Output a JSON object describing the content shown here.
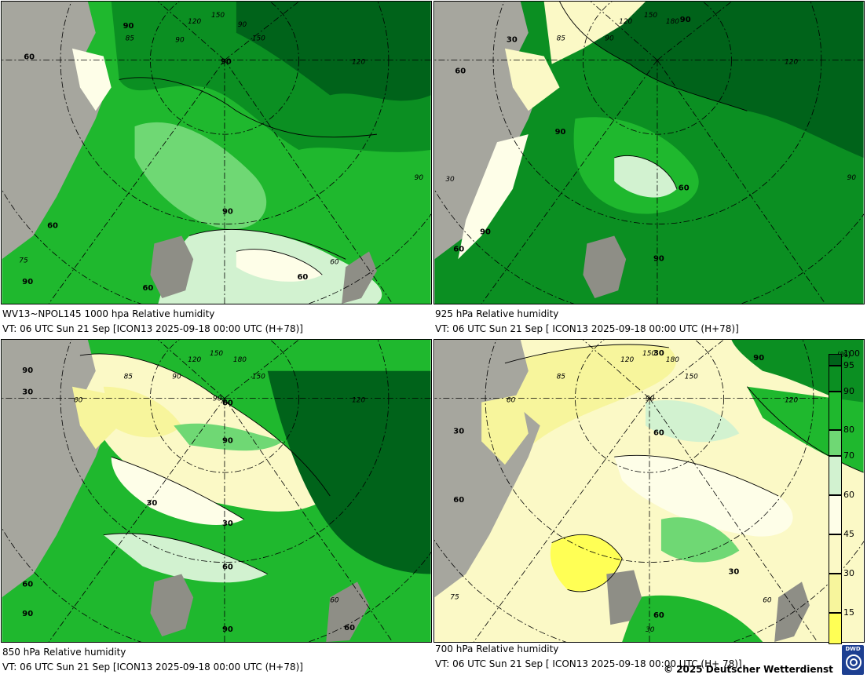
{
  "colors": {
    "land": "#a6a69e",
    "land_dark": "#8e8e86",
    "legend_scale": [
      {
        "min": 0,
        "max": 15,
        "color": "#ffff55"
      },
      {
        "min": 15,
        "max": 30,
        "color": "#f7f59c"
      },
      {
        "min": 30,
        "max": 45,
        "color": "#fbf9c6"
      },
      {
        "min": 45,
        "max": 60,
        "color": "#fefee8"
      },
      {
        "min": 60,
        "max": 70,
        "color": "#d2f2d0"
      },
      {
        "min": 70,
        "max": 80,
        "color": "#6fd874"
      },
      {
        "min": 80,
        "max": 90,
        "color": "#1fb82e"
      },
      {
        "min": 90,
        "max": 95,
        "color": "#0b8f22"
      },
      {
        "min": 95,
        "max": 100,
        "color": "#00631a"
      }
    ]
  },
  "legend": {
    "unit": "(%)",
    "ticks": [
      "100",
      "95",
      "90",
      "80",
      "70",
      "60",
      "45",
      "30",
      "15"
    ]
  },
  "panels": [
    {
      "id": "p1",
      "caption_line1": "WV13~NPOL145 1000 hpa Relative humidity",
      "caption_line2": "VT: 06 UTC Sun  21 Sep [ICON13 2025-09-18 00:00 UTC  (H+78)]",
      "base_color": "#1fb82e",
      "contour_labels": [
        "90",
        "60",
        "60",
        "90",
        "90",
        "60",
        "90",
        "60"
      ],
      "grid_labels": [
        "90",
        "120",
        "150",
        "150",
        "90",
        "85",
        "120",
        "90",
        "75",
        "60"
      ]
    },
    {
      "id": "p2",
      "caption_line1": "925 hPa Relative humidity",
      "caption_line2": "VT: 06 UTC Sun  21 Sep [ ICON13 2025-09-18 00:00 UTC  (H+78)]",
      "base_color": "#0b8f22",
      "contour_labels": [
        "30",
        "90",
        "60",
        "90",
        "60",
        "90",
        "60",
        "90"
      ],
      "grid_labels": [
        "150",
        "120",
        "180",
        "90",
        "85",
        "120",
        "90",
        "30"
      ]
    },
    {
      "id": "p3",
      "caption_line1": "850 hPa  Relative humidity",
      "caption_line2": "VT: 06 UTC Sun  21 Sep [ICON13 2025-09-18 00:00 UTC  (H+78)]",
      "base_color": "#1fb82e",
      "contour_labels": [
        "90",
        "30",
        "60",
        "90",
        "30",
        "30",
        "60",
        "60",
        "90",
        "90",
        "60"
      ],
      "grid_labels": [
        "120",
        "150",
        "180",
        "150",
        "85",
        "90",
        "60",
        "90",
        "120",
        "60"
      ]
    },
    {
      "id": "p4",
      "caption_line1": "700 hPa Relative humidity",
      "caption_line2": "VT: 06 UTC Sun  21 Sep [ ICON13 2025-09-18 00:00 UTC  (H+ 78)]",
      "base_color": "#fbf9c6",
      "contour_labels": [
        "30",
        "90",
        "30",
        "60",
        "60",
        "30",
        "60"
      ],
      "grid_labels": [
        "150",
        "120",
        "180",
        "85",
        "90",
        "150",
        "60",
        "120",
        "75",
        "30",
        "60"
      ]
    }
  ],
  "copyright": "© 2025 Deutscher Wetterdienst",
  "logo_text": "DWD"
}
